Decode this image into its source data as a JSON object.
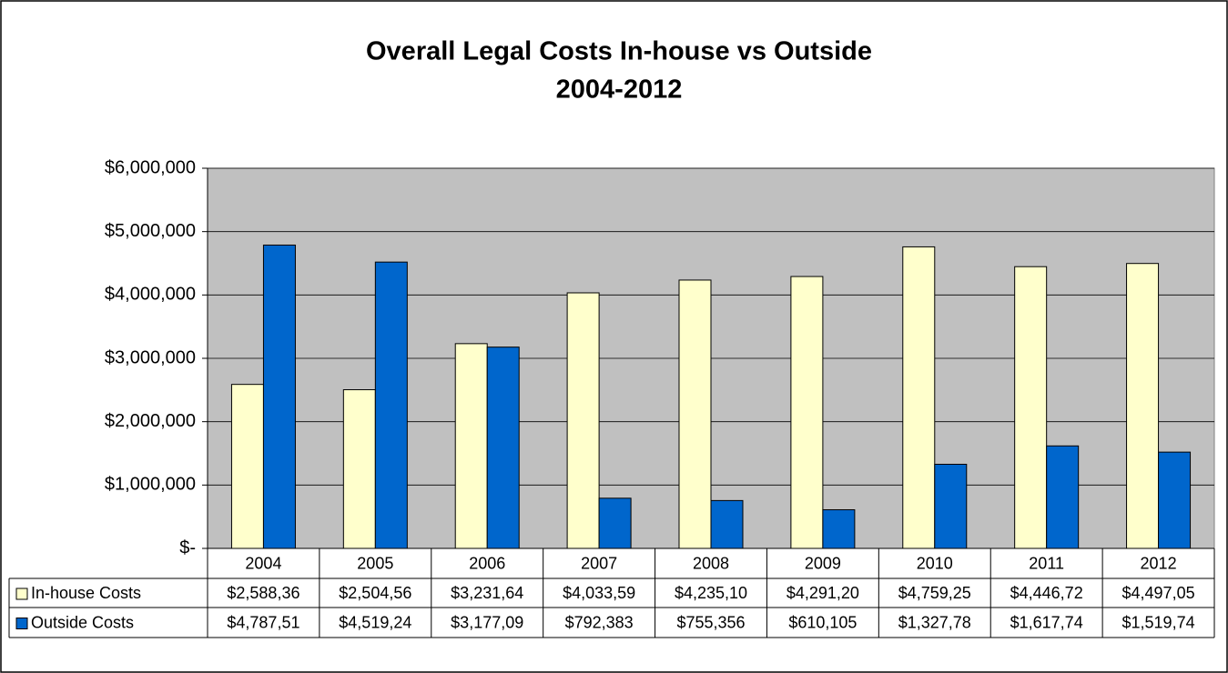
{
  "chart_data": {
    "type": "bar",
    "title": "Overall Legal Costs In-house vs Outside",
    "subtitle": "2004-2012",
    "categories": [
      "2004",
      "2005",
      "2006",
      "2007",
      "2008",
      "2009",
      "2010",
      "2011",
      "2012"
    ],
    "series": [
      {
        "name": "In-house Costs",
        "color": "#ffffcc",
        "values": [
          2588360,
          2504560,
          3231640,
          4033590,
          4235100,
          4291200,
          4759250,
          4446720,
          4497050
        ],
        "value_labels": [
          "$2,588,36",
          "$2,504,56",
          "$3,231,64",
          "$4,033,59",
          "$4,235,10",
          "$4,291,20",
          "$4,759,25",
          "$4,446,72",
          "$4,497,05"
        ]
      },
      {
        "name": "Outside Costs",
        "color": "#0066cc",
        "values": [
          4787510,
          4519240,
          3177090,
          792383,
          755356,
          610105,
          1327780,
          1617740,
          1519740
        ],
        "value_labels": [
          "$4,787,51",
          "$4,519,24",
          "$3,177,09",
          "$792,383",
          "$755,356",
          "$610,105",
          "$1,327,78",
          "$1,617,74",
          "$1,519,74"
        ]
      }
    ],
    "ylim": [
      0,
      6000000
    ],
    "yticks": [
      {
        "value": 0,
        "label": "$-"
      },
      {
        "value": 1000000,
        "label": "$1,000,000"
      },
      {
        "value": 2000000,
        "label": "$2,000,000"
      },
      {
        "value": 3000000,
        "label": "$3,000,000"
      },
      {
        "value": 4000000,
        "label": "$4,000,000"
      },
      {
        "value": 5000000,
        "label": "$5,000,000"
      },
      {
        "value": 6000000,
        "label": "$6,000,000"
      }
    ],
    "grid": true
  }
}
